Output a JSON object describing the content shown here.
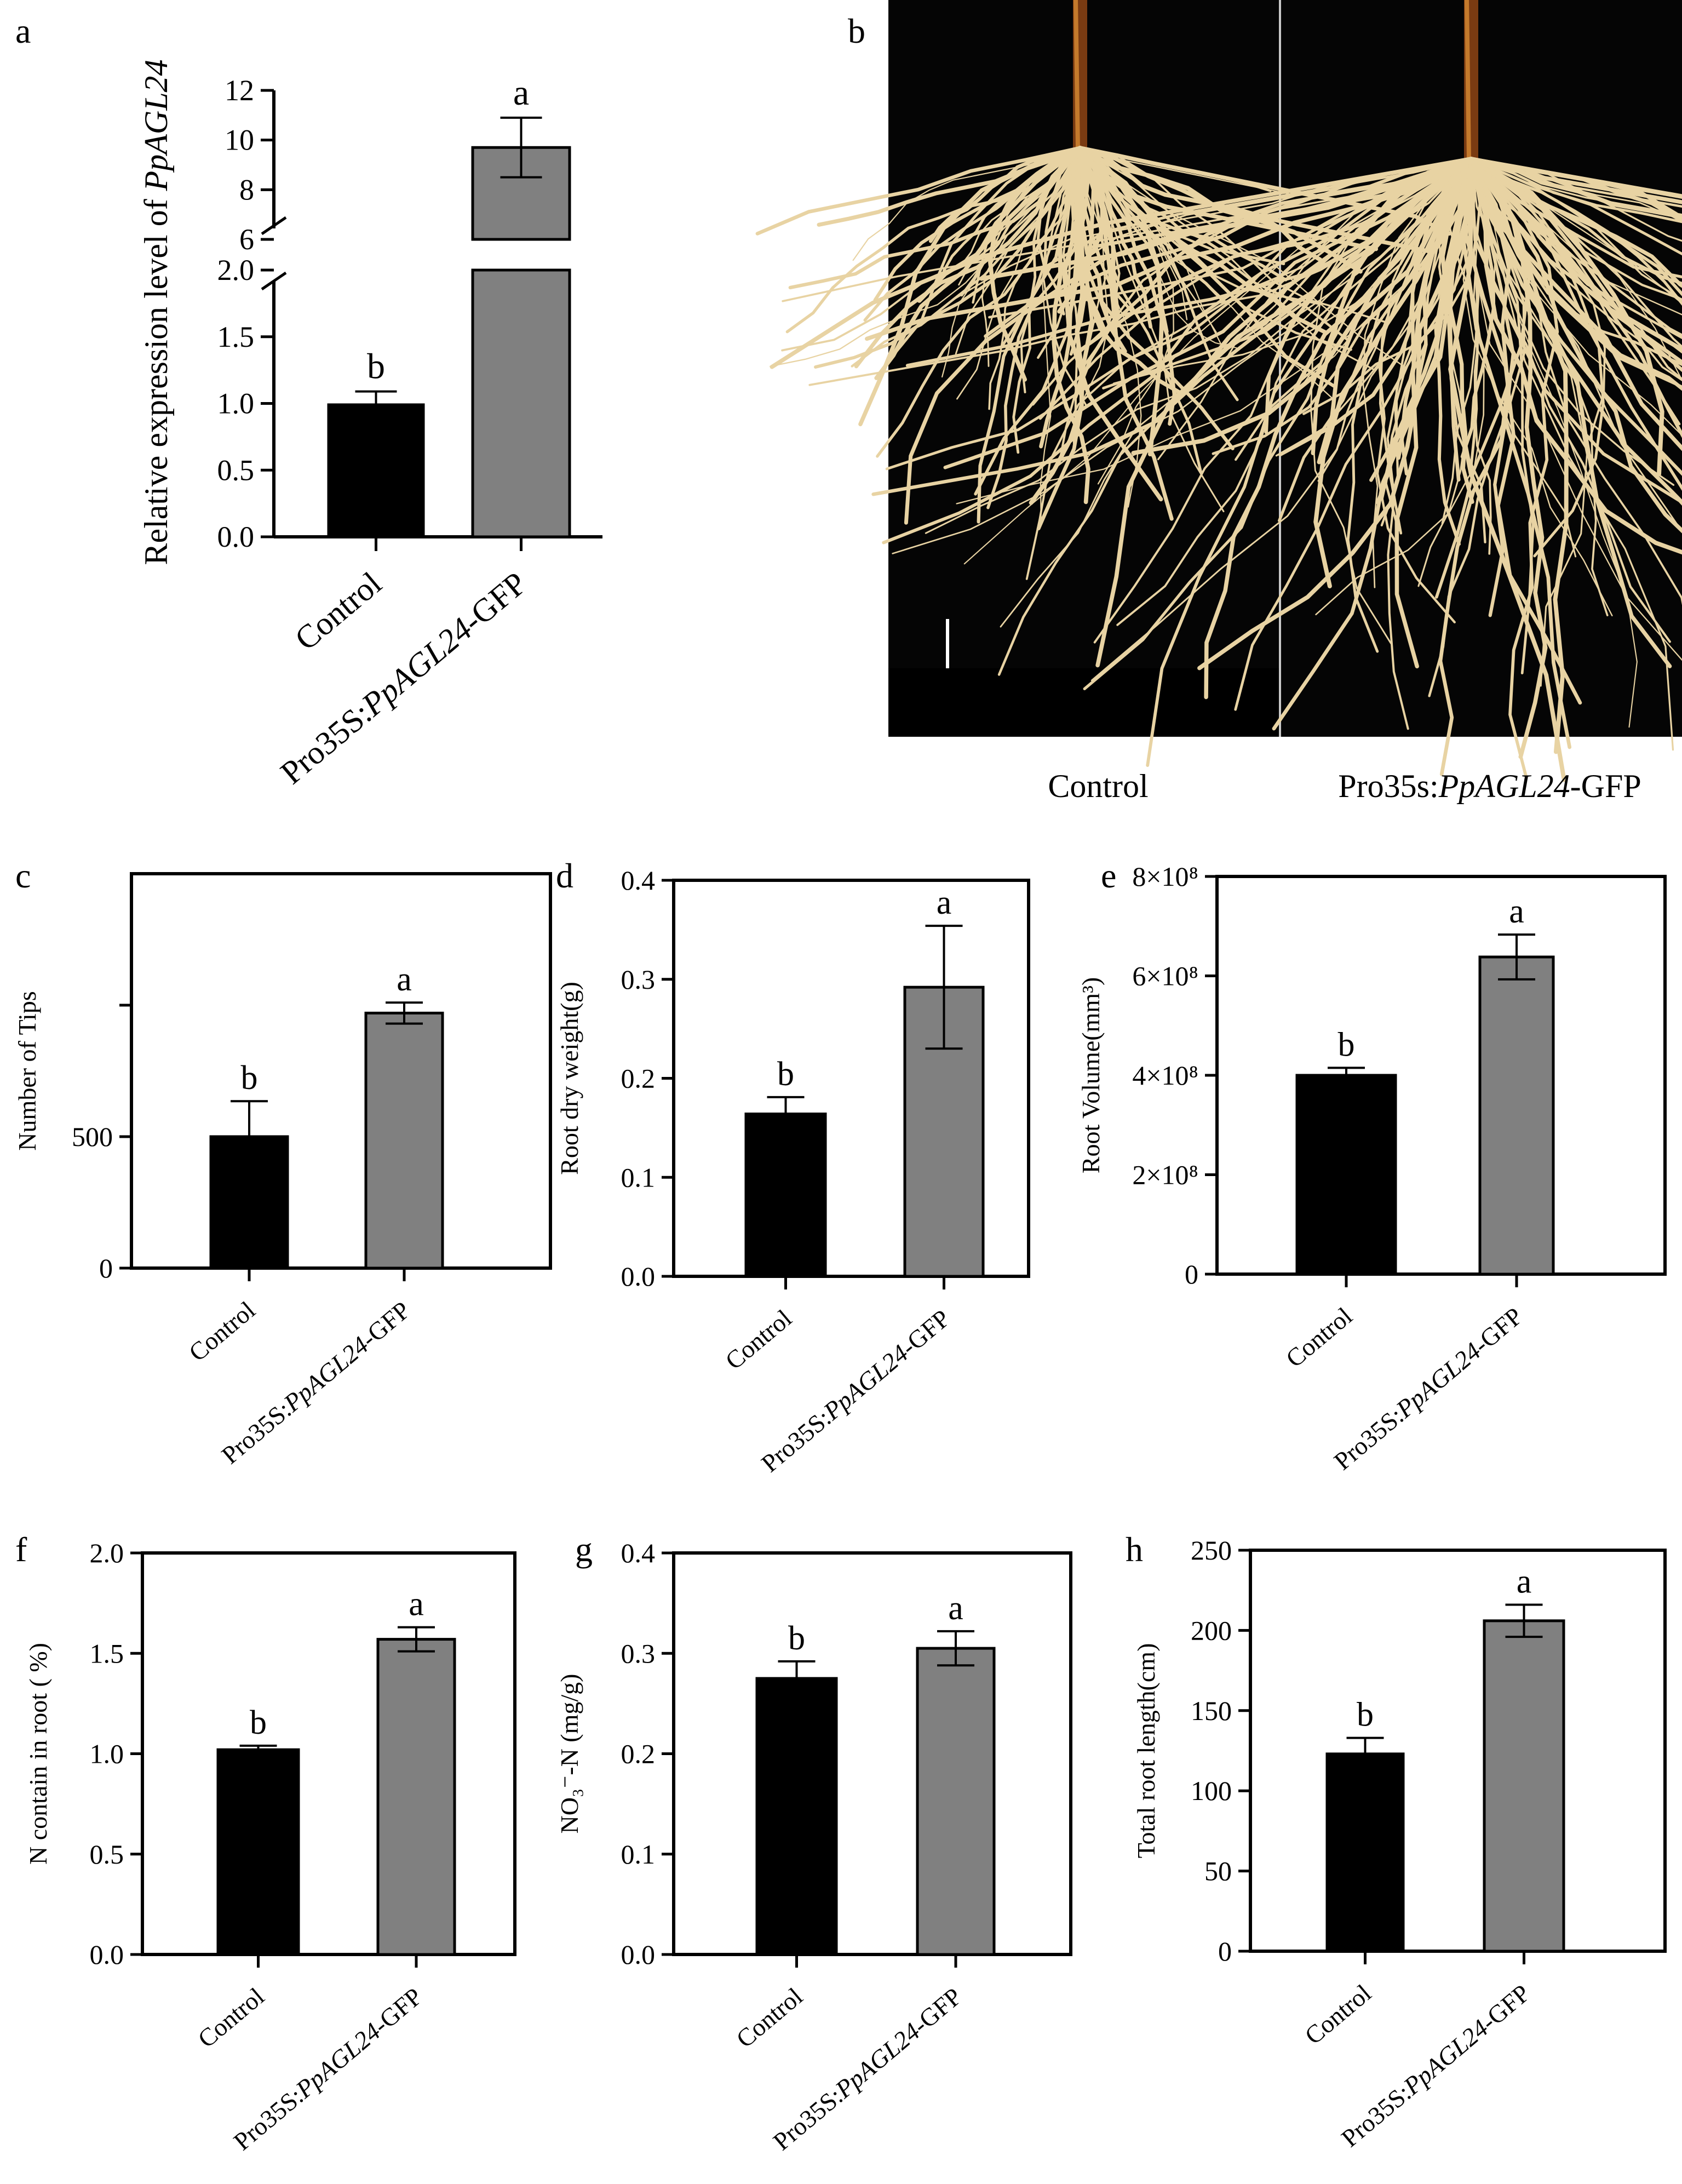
{
  "panels": {
    "a": {
      "letter": "a"
    },
    "b": {
      "letter": "b",
      "caption_left": "Control",
      "caption_right_prefix": "Pro35s:",
      "caption_right_gene": "PpAGL24",
      "caption_right_suffix": "-GFP"
    }
  },
  "chart_data": [
    {
      "panel": "a",
      "type": "bar",
      "ylabel_prefix": "Relative expression level of ",
      "ylabel_gene": "PpAGL24",
      "axis_break": {
        "lower": [
          0,
          2.0
        ],
        "upper": [
          6,
          12
        ]
      },
      "yticks_lower": [
        "0.0",
        "0.5",
        "1.0",
        "1.5",
        "2.0"
      ],
      "yticks_upper": [
        "6",
        "8",
        "10",
        "12"
      ],
      "categories": [
        "Control",
        "Pro35S:PpAGL24-GFP"
      ],
      "values": [
        0.99,
        9.7
      ],
      "errors": [
        0.1,
        1.2
      ],
      "letters": [
        "b",
        "a"
      ],
      "colors": [
        "#000000",
        "#808080"
      ]
    },
    {
      "panel": "c",
      "type": "bar",
      "ylabel": "Number of Tips",
      "ylim": [
        0,
        1500
      ],
      "yticks": [
        0,
        500
      ],
      "ytick_labels": [
        "0",
        "500"
      ],
      "minor_ticks": [
        1000
      ],
      "categories": [
        "Control",
        "Pro35S:PpAGL24-GFP"
      ],
      "values": [
        500,
        970
      ],
      "errors": [
        135,
        40
      ],
      "letters": [
        "b",
        "a"
      ],
      "colors": [
        "#000000",
        "#808080"
      ]
    },
    {
      "panel": "d",
      "type": "bar",
      "ylabel": "Root dry weight(g)",
      "ylim": [
        0,
        0.4
      ],
      "yticks": [
        0,
        0.1,
        0.2,
        0.3,
        0.4
      ],
      "ytick_labels": [
        "0.0",
        "0.1",
        "0.2",
        "0.3",
        "0.4"
      ],
      "categories": [
        "Control",
        "Pro35S:PpAGL24-GFP"
      ],
      "values": [
        0.164,
        0.292
      ],
      "errors": [
        0.017,
        0.062
      ],
      "letters": [
        "b",
        "a"
      ],
      "colors": [
        "#000000",
        "#808080"
      ]
    },
    {
      "panel": "e",
      "type": "bar",
      "ylabel": "Root Volume(mm³)",
      "ylim": [
        0,
        800000000
      ],
      "yticks": [
        0,
        200000000,
        400000000,
        600000000,
        800000000
      ],
      "ytick_labels": [
        "0",
        "2×10⁸",
        "4×10⁸",
        "6×10⁸",
        "8×10⁸"
      ],
      "categories": [
        "Control",
        "Pro35S:PpAGL24-GFP"
      ],
      "values": [
        400000000,
        638000000
      ],
      "errors": [
        15000000,
        45000000
      ],
      "letters": [
        "b",
        "a"
      ],
      "colors": [
        "#000000",
        "#808080"
      ]
    },
    {
      "panel": "f",
      "type": "bar",
      "ylabel": "N contain in root ( %)",
      "ylim": [
        0,
        2.0
      ],
      "yticks": [
        0,
        0.5,
        1.0,
        1.5,
        2.0
      ],
      "ytick_labels": [
        "0.0",
        "0.5",
        "1.0",
        "1.5",
        "2.0"
      ],
      "categories": [
        "Control",
        "Pro35S:PpAGL24-GFP"
      ],
      "values": [
        1.02,
        1.57
      ],
      "errors": [
        0.02,
        0.06
      ],
      "letters": [
        "b",
        "a"
      ],
      "colors": [
        "#000000",
        "#808080"
      ]
    },
    {
      "panel": "g",
      "type": "bar",
      "ylabel": "NO₃⁻-N (mg/g)",
      "ylim": [
        0,
        0.4
      ],
      "yticks": [
        0,
        0.1,
        0.2,
        0.3,
        0.4
      ],
      "ytick_labels": [
        "0.0",
        "0.1",
        "0.2",
        "0.3",
        "0.4"
      ],
      "categories": [
        "Control",
        "Pro35S:PpAGL24-GFP"
      ],
      "values": [
        0.275,
        0.305
      ],
      "errors": [
        0.017,
        0.017
      ],
      "letters": [
        "b",
        "a"
      ],
      "colors": [
        "#000000",
        "#808080"
      ]
    },
    {
      "panel": "h",
      "type": "bar",
      "ylabel": "Total root length(cm)",
      "ylim": [
        0,
        250
      ],
      "yticks": [
        0,
        50,
        100,
        150,
        200,
        250
      ],
      "ytick_labels": [
        "0",
        "50",
        "100",
        "150",
        "200",
        "250"
      ],
      "categories": [
        "Control",
        "Pro35S:PpAGL24-GFP"
      ],
      "values": [
        123,
        206
      ],
      "errors": [
        10,
        10
      ],
      "letters": [
        "b",
        "a"
      ],
      "colors": [
        "#000000",
        "#808080"
      ]
    }
  ]
}
